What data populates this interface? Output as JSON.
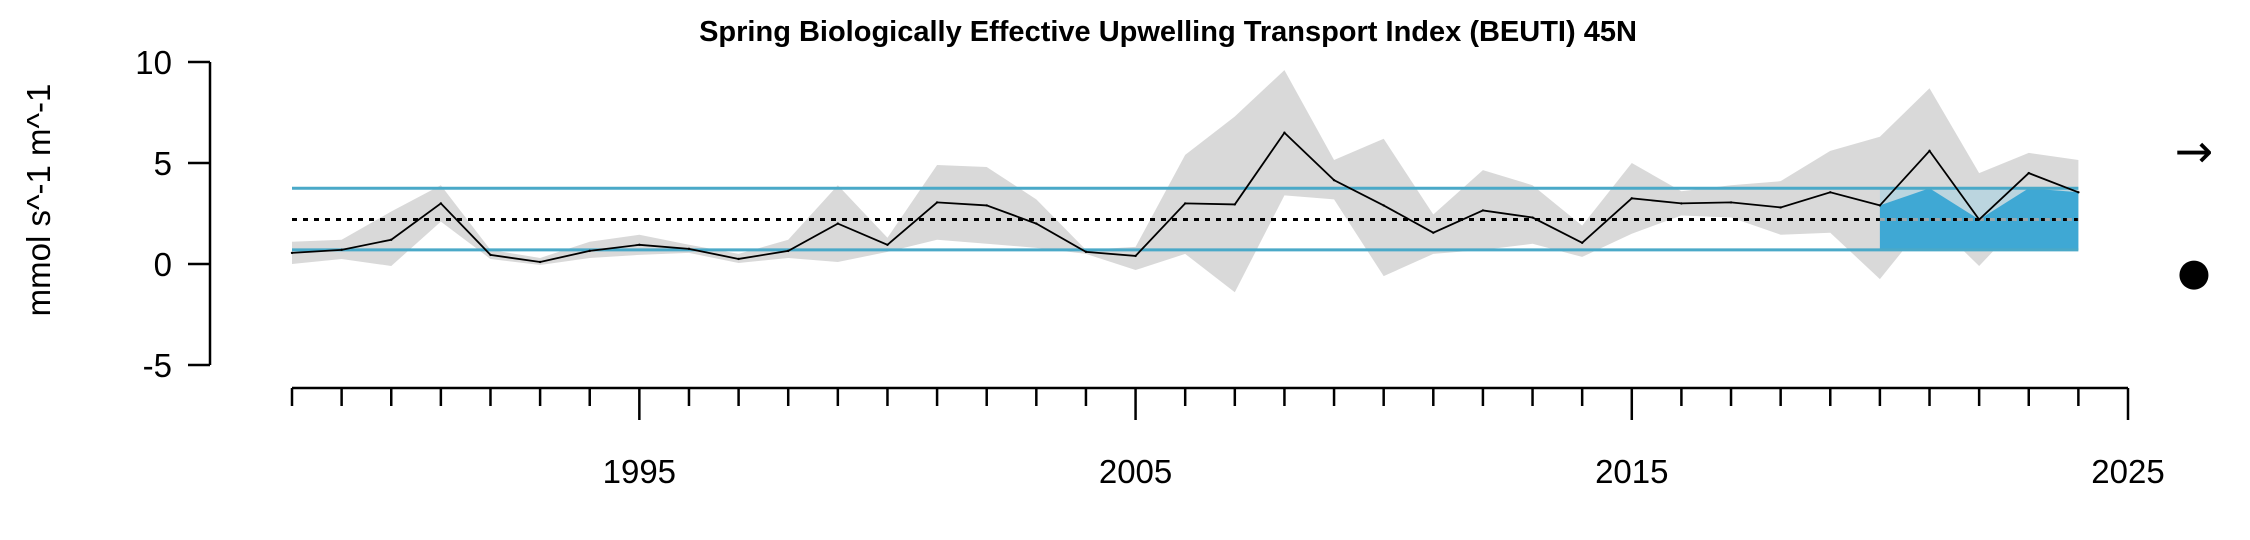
{
  "chart_data": {
    "type": "line",
    "title": "Spring Biologically Effective Upwelling Transport Index (BEUTI) 45N",
    "xlabel": "",
    "ylabel": "mmol s^-1 m^-1",
    "xlim": [
      1988,
      2025
    ],
    "ylim": [
      -5,
      10
    ],
    "x_tick_labels": [
      "1995",
      "2005",
      "2015",
      "2025"
    ],
    "y_tick_labels": [
      "10",
      "5",
      "0",
      "-5"
    ],
    "x_tick_labels_values": [
      1995,
      2005,
      2015,
      2025
    ],
    "y_tick_values": [
      10,
      5,
      0,
      -5
    ],
    "x_minor_ticks": [
      1988,
      1989,
      1990,
      1991,
      1992,
      1993,
      1994,
      1995,
      1996,
      1997,
      1998,
      1999,
      2000,
      2001,
      2002,
      2003,
      2004,
      2005,
      2006,
      2007,
      2008,
      2009,
      2010,
      2011,
      2012,
      2013,
      2014,
      2015,
      2016,
      2017,
      2018,
      2019,
      2020,
      2021,
      2022,
      2023,
      2024,
      2025
    ],
    "x": [
      1988,
      1989,
      1990,
      1991,
      1992,
      1993,
      1994,
      1995,
      1996,
      1997,
      1998,
      1999,
      2000,
      2001,
      2002,
      2003,
      2004,
      2005,
      2006,
      2007,
      2008,
      2009,
      2010,
      2011,
      2012,
      2013,
      2014,
      2015,
      2016,
      2017,
      2018,
      2019,
      2020,
      2021,
      2022,
      2023,
      2024
    ],
    "values": [
      0.55,
      0.7,
      1.2,
      3.0,
      0.45,
      0.1,
      0.65,
      0.95,
      0.75,
      0.25,
      0.65,
      2.0,
      0.95,
      3.05,
      2.9,
      2.0,
      0.6,
      0.4,
      3.0,
      2.95,
      6.5,
      4.15,
      2.9,
      1.55,
      2.65,
      2.3,
      1.05,
      3.25,
      3.0,
      3.05,
      2.8,
      3.55,
      2.9,
      5.6,
      2.2,
      4.5,
      3.55
    ],
    "upper": [
      1.1,
      1.2,
      2.6,
      3.9,
      0.7,
      0.3,
      1.1,
      1.45,
      0.95,
      0.5,
      1.2,
      3.9,
      1.3,
      4.9,
      4.8,
      3.2,
      0.7,
      0.85,
      5.4,
      7.3,
      9.6,
      5.15,
      6.2,
      2.45,
      4.65,
      3.9,
      1.9,
      5.0,
      3.6,
      3.9,
      4.1,
      5.6,
      6.3,
      8.7,
      4.5,
      5.5,
      5.15
    ],
    "lower": [
      0.0,
      0.25,
      -0.1,
      2.1,
      0.25,
      -0.05,
      0.3,
      0.45,
      0.55,
      0.05,
      0.3,
      0.1,
      0.6,
      1.2,
      1.0,
      0.8,
      0.5,
      -0.3,
      0.5,
      -1.4,
      3.4,
      3.2,
      -0.6,
      0.5,
      0.7,
      1.0,
      0.35,
      1.5,
      2.4,
      2.3,
      1.45,
      1.55,
      -0.75,
      2.3,
      -0.1,
      2.5,
      2.0
    ],
    "mean": 2.2,
    "upper_sd": 3.75,
    "lower_sd": 0.7,
    "recent_window": [
      2020,
      2024
    ],
    "trend_symbol": "→",
    "mean_symbol": "●",
    "colors": {
      "line": "#000000",
      "band": "#d9d9d9",
      "sd_lines": "#4aa9c8",
      "mean_line": "#000000",
      "recent_shade": "#b5d3df",
      "recent_fill": "#3fa8d4"
    },
    "grid": false,
    "legend": "none"
  }
}
